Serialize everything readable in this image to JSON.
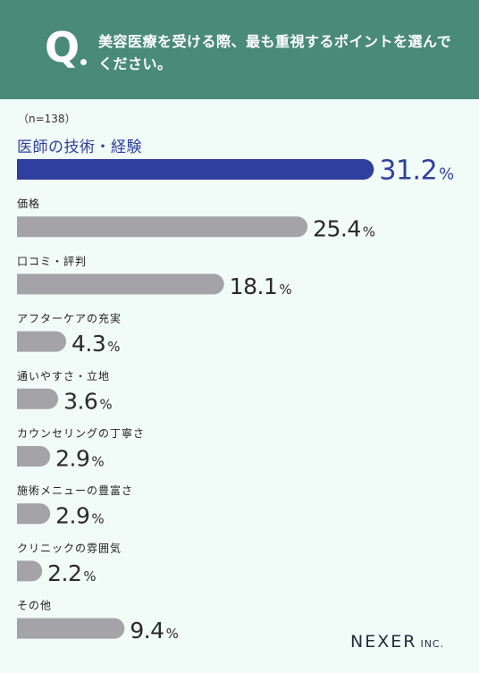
{
  "header": {
    "q_mark": "Q",
    "question": "美容医療を受ける際、最も重視するポイントを選んでください。"
  },
  "sample_label": "（n=138）",
  "brand": {
    "name": "NEXER",
    "suffix": "INC."
  },
  "colors": {
    "header": "#4a8a79",
    "highlight": "#2f3f9f",
    "bar": "#a3a3a8",
    "background": "#f1fbf7"
  },
  "chart_data": {
    "type": "bar",
    "orientation": "horizontal",
    "categories": [
      "医師の技術・経験",
      "価格",
      "口コミ・評判",
      "アフターケアの充実",
      "通いやすさ・立地",
      "カウンセリングの丁寧さ",
      "施術メニューの豊富さ",
      "クリニックの雰囲気",
      "その他"
    ],
    "values": [
      31.2,
      25.4,
      18.1,
      4.3,
      3.6,
      2.9,
      2.9,
      2.2,
      9.4
    ],
    "value_labels": [
      "31.2",
      "25.4",
      "18.1",
      "4.3",
      "3.6",
      "2.9",
      "2.9",
      "2.2",
      "9.4"
    ],
    "unit": "%",
    "highlight_index": 0
  }
}
